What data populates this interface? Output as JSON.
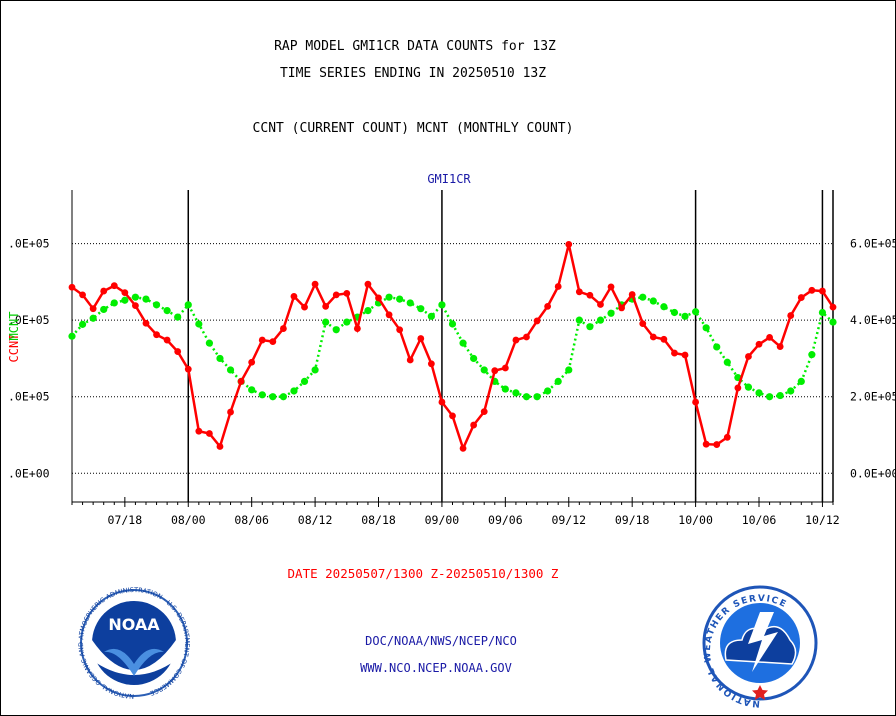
{
  "header": {
    "title_line1": "RAP MODEL GMI1CR DATA COUNTS for 13Z",
    "title_line2": "TIME SERIES ENDING IN 20250510 13Z",
    "subtitle": "CCNT (CURRENT COUNT) MCNT (MONTHLY COUNT)"
  },
  "footer": {
    "date_range": "DATE 20250507/1300 Z-20250510/1300 Z",
    "org_path": "DOC/NOAA/NWS/NCEP/NCO",
    "website": "WWW.NCO.NCEP.NOAA.GOV",
    "noaa_logo_text": "NOAA",
    "noaa_ring_text": "NATIONAL OCEANIC AND ATMOSPHERIC ADMINISTRATION · U.S. DEPARTMENT OF COMMERCE",
    "nws_ring_text": "NATIONAL WEATHER SERVICE"
  },
  "colors": {
    "ccnt": "#ff0000",
    "mcnt": "#00ee00",
    "axis": "#000000",
    "link": "#1a1aa6"
  },
  "chart_data": {
    "type": "line",
    "title": "GMI1CR",
    "ylabel_left": "CCNT",
    "ylabel_right": "MCNT",
    "x_tick_labels": [
      "07/18",
      "08/00",
      "08/06",
      "08/12",
      "08/18",
      "09/00",
      "09/06",
      "09/12",
      "09/18",
      "10/00",
      "10/06",
      "10/12"
    ],
    "y_left_tick_labels": [
      ".0E+00",
      ".0E+05",
      ".0E+05",
      ".0E+05"
    ],
    "y_right_tick_labels": [
      "0.0E+00",
      "2.0E+05",
      "4.0E+05",
      "6.0E+05"
    ],
    "y_tick_values": [
      0,
      200000,
      400000,
      600000
    ],
    "ylim": [
      -75000,
      740000
    ],
    "x_range_hours": [
      13,
      85
    ],
    "day_boundaries_hours": [
      24,
      48,
      72
    ],
    "gridlines": "horizontal",
    "series": [
      {
        "name": "CCNT",
        "color": "#ff0000",
        "x": [
          13,
          14,
          15,
          16,
          17,
          18,
          19,
          20,
          21,
          22,
          23,
          24,
          25,
          26,
          27,
          28,
          29,
          30,
          31,
          32,
          33,
          34,
          35,
          36,
          37,
          38,
          39,
          40,
          41,
          42,
          43,
          44,
          45,
          46,
          47,
          48,
          49,
          50,
          51,
          52,
          53,
          54,
          55,
          56,
          57,
          58,
          59,
          60,
          61,
          62,
          63,
          64,
          65,
          66,
          67,
          68,
          69,
          70,
          71,
          72,
          73,
          74,
          75,
          76,
          77,
          78,
          79,
          80,
          81,
          82,
          83,
          84,
          85
        ],
        "values": [
          486000,
          466000,
          430000,
          476000,
          490000,
          472000,
          438000,
          392000,
          362000,
          348000,
          318000,
          272000,
          110000,
          104000,
          70000,
          160000,
          240000,
          290000,
          348000,
          344000,
          378000,
          462000,
          434000,
          494000,
          436000,
          466000,
          470000,
          378000,
          494000,
          458000,
          414000,
          375000,
          296000,
          352000,
          286000,
          186000,
          150000,
          65000,
          126000,
          161000,
          268000,
          275000,
          348000,
          356000,
          398000,
          436000,
          488000,
          598000,
          474000,
          465000,
          441000,
          487000,
          432000,
          467000,
          391000,
          356000,
          350000,
          314000,
          309000,
          186000,
          76000,
          75000,
          94000,
          223000,
          305000,
          337000,
          355000,
          331000,
          412000,
          459000,
          478000,
          476000,
          434000
        ]
      },
      {
        "name": "MCNT",
        "color": "#00ee00",
        "x": [
          13,
          14,
          15,
          16,
          17,
          18,
          19,
          20,
          21,
          22,
          23,
          24,
          25,
          26,
          27,
          28,
          29,
          30,
          31,
          32,
          33,
          34,
          35,
          36,
          37,
          38,
          39,
          40,
          41,
          42,
          43,
          44,
          45,
          46,
          47,
          48,
          49,
          50,
          51,
          52,
          53,
          54,
          55,
          56,
          57,
          58,
          59,
          60,
          61,
          62,
          63,
          64,
          65,
          66,
          67,
          68,
          69,
          70,
          71,
          72,
          73,
          74,
          75,
          76,
          77,
          78,
          79,
          80,
          81,
          82,
          83,
          84,
          85
        ],
        "values": [
          358000,
          389000,
          405000,
          428000,
          445000,
          452000,
          460000,
          455000,
          440000,
          425000,
          408000,
          440000,
          390000,
          340000,
          300000,
          270000,
          240000,
          218000,
          205000,
          200000,
          200000,
          215000,
          240000,
          270000,
          395000,
          375000,
          395000,
          408000,
          425000,
          445000,
          460000,
          455000,
          445000,
          430000,
          410000,
          440000,
          390000,
          340000,
          300000,
          270000,
          240000,
          220000,
          210000,
          200000,
          200000,
          215000,
          240000,
          270000,
          400000,
          383000,
          400000,
          418000,
          440000,
          455000,
          460000,
          450000,
          435000,
          420000,
          410000,
          422000,
          380000,
          330000,
          290000,
          250000,
          225000,
          210000,
          200000,
          203000,
          215000,
          240000,
          310000,
          420000,
          395000
        ]
      }
    ]
  }
}
